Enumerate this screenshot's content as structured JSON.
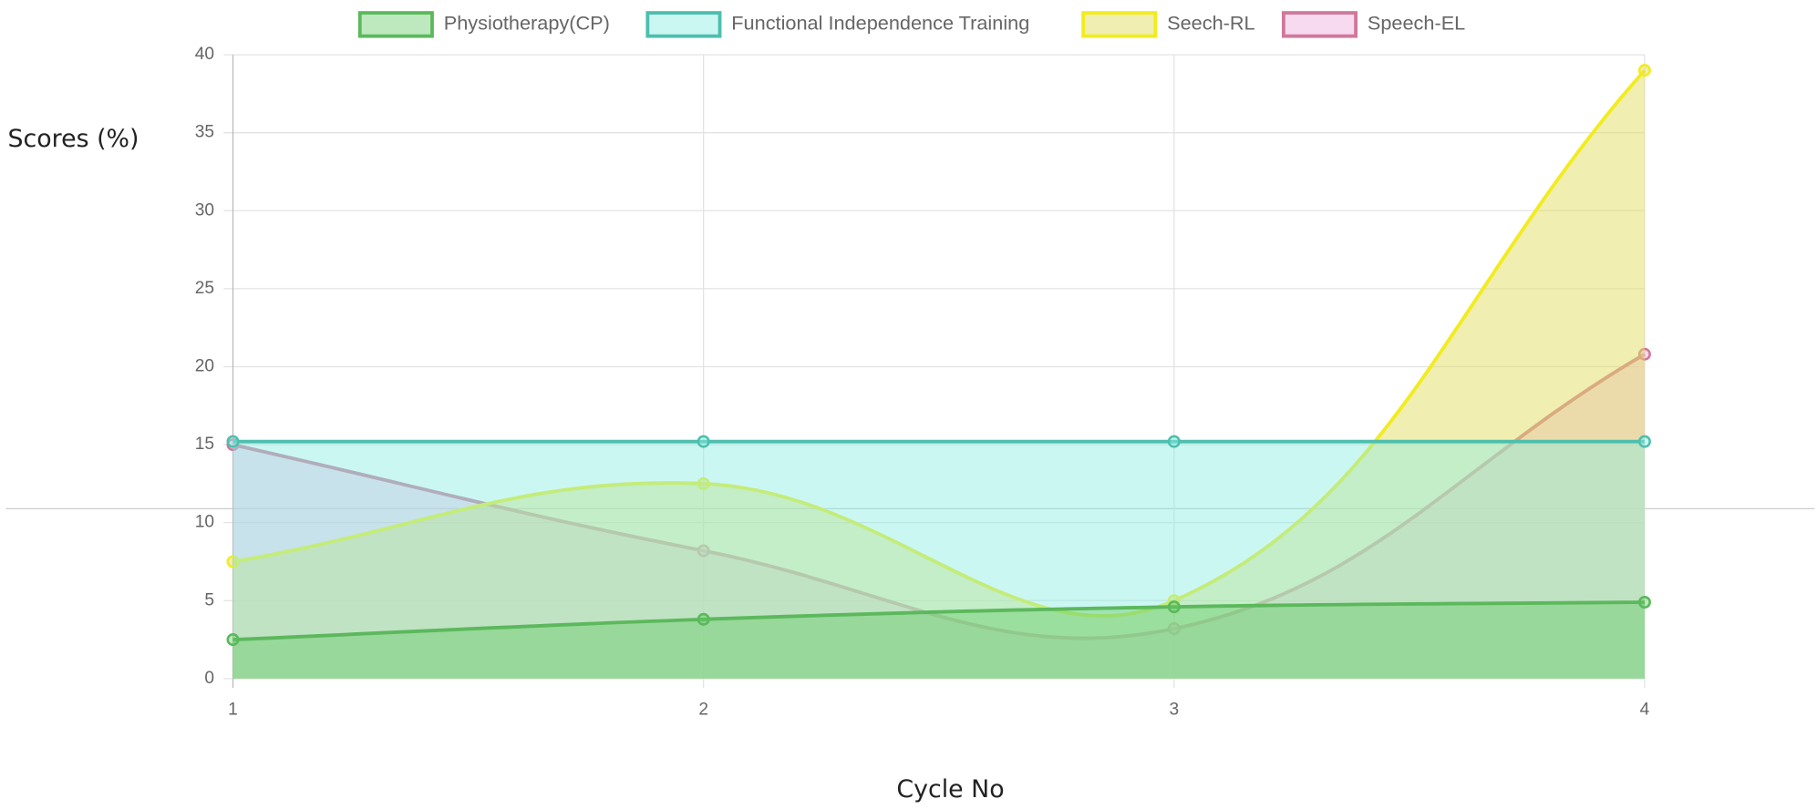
{
  "chart_data": {
    "type": "line",
    "y_label": "Scores (%)",
    "x_label": "Cycle No",
    "categories": [
      "1",
      "2",
      "3",
      "4"
    ],
    "ylim": [
      0,
      40
    ],
    "yticks": [
      0,
      5,
      10,
      15,
      20,
      25,
      30,
      35,
      40
    ],
    "grid": true,
    "smooth": true,
    "fill": true,
    "legend": "top",
    "series": [
      {
        "name": "Physiotherapy(CP)",
        "color": "#5cb85c",
        "fill_color": "rgba(92,200,92,0.4)",
        "values": [
          2.5,
          3.8,
          4.6,
          4.9
        ]
      },
      {
        "name": "Functional Independence Training",
        "color": "#4dbfae",
        "fill_color": "rgba(140,238,228,0.45)",
        "values": [
          15.2,
          15.2,
          15.2,
          15.2
        ]
      },
      {
        "name": "Seech-RL",
        "color": "#f2ec1f",
        "fill_color": "rgba(226,222,100,0.5)",
        "values": [
          7.5,
          12.5,
          5,
          39
        ]
      },
      {
        "name": "Speech-EL",
        "color": "#d0789a",
        "fill_color": "rgba(240,180,225,0.5)",
        "values": [
          15,
          8.2,
          3.2,
          20.8
        ]
      }
    ]
  }
}
